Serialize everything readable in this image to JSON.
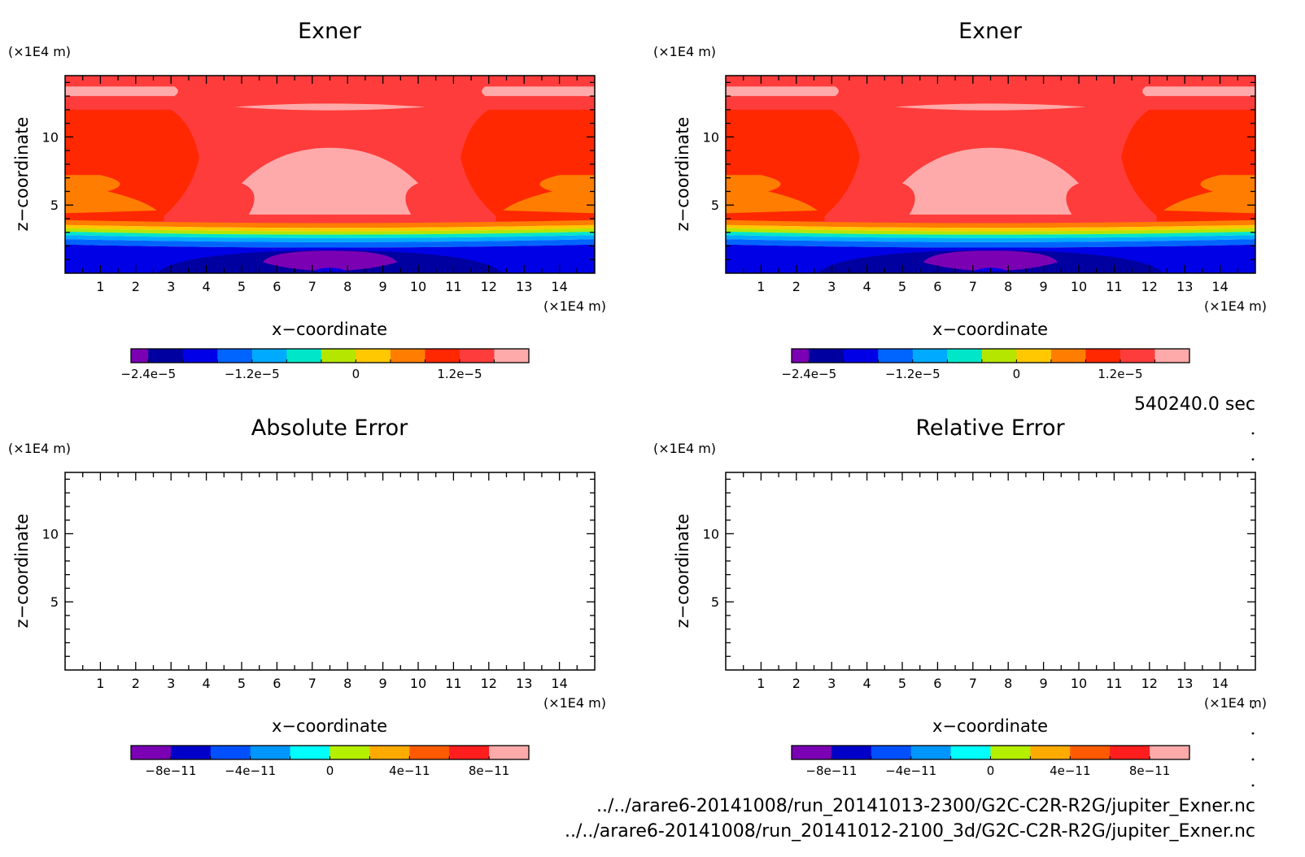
{
  "time_label": "540240.0 sec",
  "files": [
    "../../arare6-20141008/run_20141013-2300/G2C-C2R-R2G/jupiter_Exner.nc",
    "../../arare6-20141008/run_20141012-2100_3d/G2C-C2R-R2G/jupiter_Exner.nc"
  ],
  "chart_data": [
    {
      "type": "heatmap",
      "title": "Exner",
      "xlabel": "x−coordinate",
      "ylabel": "z−coordinate",
      "x_unit": "(×1E4 m)",
      "y_unit": "(×1E4 m)",
      "xlim": [
        0,
        15
      ],
      "ylim": [
        0,
        14.5
      ],
      "x_ticks": [
        "1",
        "2",
        "3",
        "4",
        "5",
        "6",
        "7",
        "8",
        "9",
        "10",
        "11",
        "12",
        "13",
        "14"
      ],
      "y_ticks": [
        "5",
        "10"
      ],
      "colorbar": {
        "levels": 12,
        "colors": [
          "#7b00b4",
          "#0000a0",
          "#0000e6",
          "#0064ff",
          "#00aaff",
          "#00e6c8",
          "#b4e600",
          "#ffc800",
          "#ff7d00",
          "#ff2800",
          "#ff3c3c",
          "#ffaaaa"
        ],
        "labels": [
          "−2.4e−5",
          "−1.2e−5",
          "0",
          "1.2e−5"
        ]
      },
      "fields": "filled"
    },
    {
      "type": "heatmap",
      "title": "Exner",
      "xlabel": "x−coordinate",
      "ylabel": "z−coordinate",
      "x_unit": "(×1E4 m)",
      "y_unit": "(×1E4 m)",
      "xlim": [
        0,
        15
      ],
      "ylim": [
        0,
        14.5
      ],
      "x_ticks": [
        "1",
        "2",
        "3",
        "4",
        "5",
        "6",
        "7",
        "8",
        "9",
        "10",
        "11",
        "12",
        "13",
        "14"
      ],
      "y_ticks": [
        "5",
        "10"
      ],
      "colorbar": {
        "levels": 12,
        "colors": [
          "#7b00b4",
          "#0000a0",
          "#0000e6",
          "#0064ff",
          "#00aaff",
          "#00e6c8",
          "#b4e600",
          "#ffc800",
          "#ff7d00",
          "#ff2800",
          "#ff3c3c",
          "#ffaaaa"
        ],
        "labels": [
          "−2.4e−5",
          "−1.2e−5",
          "0",
          "1.2e−5"
        ]
      },
      "fields": "filled"
    },
    {
      "type": "heatmap",
      "title": "Absolute Error",
      "xlabel": "x−coordinate",
      "ylabel": "z−coordinate",
      "x_unit": "(×1E4 m)",
      "y_unit": "(×1E4 m)",
      "xlim": [
        0,
        15
      ],
      "ylim": [
        0,
        14.5
      ],
      "x_ticks": [
        "1",
        "2",
        "3",
        "4",
        "5",
        "6",
        "7",
        "8",
        "9",
        "10",
        "11",
        "12",
        "13",
        "14"
      ],
      "y_ticks": [
        "5",
        "10"
      ],
      "colorbar": {
        "levels": 10,
        "colors": [
          "#7b00b4",
          "#0000c8",
          "#0050ff",
          "#0096ff",
          "#00ffff",
          "#b4f000",
          "#ffaa00",
          "#ff5a00",
          "#ff1e1e",
          "#ffaaaa"
        ],
        "labels": [
          "−8e−11",
          "−4e−11",
          "0",
          "4e−11",
          "8e−11"
        ]
      },
      "fields": "empty"
    },
    {
      "type": "heatmap",
      "title": "Relative Error",
      "xlabel": "x−coordinate",
      "ylabel": "z−coordinate",
      "x_unit": "(×1E4 m)",
      "y_unit": "(×1E4 m)",
      "xlim": [
        0,
        15
      ],
      "ylim": [
        0,
        14.5
      ],
      "x_ticks": [
        "1",
        "2",
        "3",
        "4",
        "5",
        "6",
        "7",
        "8",
        "9",
        "10",
        "11",
        "12",
        "13",
        "14"
      ],
      "y_ticks": [
        "5",
        "10"
      ],
      "colorbar": {
        "levels": 10,
        "colors": [
          "#7b00b4",
          "#0000c8",
          "#0050ff",
          "#0096ff",
          "#00ffff",
          "#b4f000",
          "#ffaa00",
          "#ff5a00",
          "#ff1e1e",
          "#ffaaaa"
        ],
        "labels": [
          "−8e−11",
          "−4e−11",
          "0",
          "4e−11",
          "8e−11"
        ]
      },
      "fields": "empty"
    }
  ]
}
